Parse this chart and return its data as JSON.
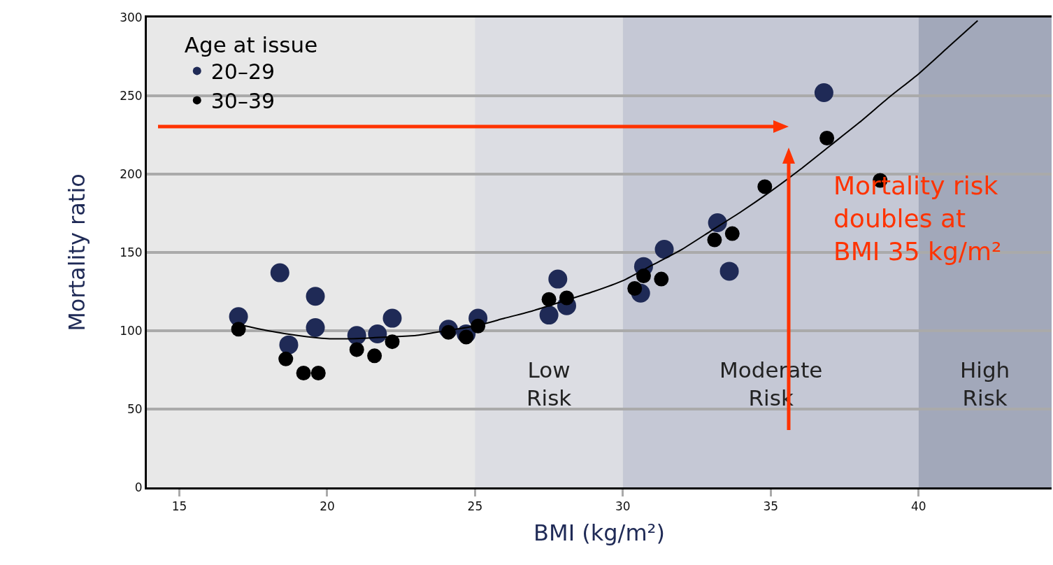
{
  "chart_data": {
    "type": "scatter",
    "xlabel": "BMI (kg/m²)",
    "ylabel": "Mortality ratio",
    "legend_title": "Age at issue",
    "xlim": [
      13.9,
      44.5
    ],
    "xticks": [
      15,
      20,
      25,
      30,
      35,
      40
    ],
    "ylim": [
      0,
      300
    ],
    "yticks": [
      0,
      50,
      100,
      150,
      200,
      250,
      300
    ],
    "grid": "y",
    "legend": "top left",
    "marker": "circle",
    "series": [
      {
        "name": "20–29",
        "color": "#1f2a56",
        "x": [
          17.0,
          18.4,
          18.7,
          19.6,
          19.6,
          21.0,
          21.7,
          22.2,
          24.1,
          24.7,
          25.1,
          27.5,
          27.8,
          28.1,
          30.6,
          30.7,
          31.4,
          33.2,
          33.6,
          36.8
        ],
        "values": [
          109,
          137,
          91,
          102,
          122,
          97,
          98,
          108,
          101,
          98,
          108,
          110,
          133,
          116,
          124,
          141,
          152,
          169,
          138,
          252
        ]
      },
      {
        "name": "30–39",
        "color": "#000000",
        "x": [
          17.0,
          18.6,
          19.2,
          19.7,
          21.0,
          21.6,
          22.2,
          24.1,
          24.7,
          25.1,
          27.5,
          28.1,
          30.4,
          30.7,
          31.3,
          33.1,
          33.7,
          34.8,
          36.9,
          38.7
        ],
        "values": [
          101,
          82,
          73,
          73,
          88,
          84,
          93,
          99,
          96,
          103,
          120,
          121,
          127,
          135,
          133,
          158,
          162,
          192,
          223,
          196
        ]
      },
      {
        "type": "line",
        "color": "#000000",
        "marker": "none",
        "x": [
          17,
          18,
          19,
          20,
          21,
          22,
          23,
          24,
          25,
          26,
          27,
          28,
          29,
          30,
          31,
          32,
          33,
          34,
          35,
          36,
          37,
          38,
          39,
          40,
          41,
          42
        ],
        "values": [
          104,
          100,
          97,
          95,
          95,
          96,
          97,
          100,
          103,
          108,
          113,
          119,
          125,
          132,
          142,
          152,
          164,
          176,
          189,
          203,
          218,
          233,
          249,
          264,
          281,
          298
        ]
      }
    ],
    "bands": [
      {
        "axis": "x",
        "from": 25,
        "to": 30,
        "label": "Low\nRisk",
        "color": "#dcdde3"
      },
      {
        "axis": "x",
        "from": 30,
        "to": 40,
        "label": "Moderate\nRisk",
        "color": "#c5c8d5"
      },
      {
        "axis": "x",
        "from": 40,
        "to": 44.5,
        "label": "High\nRisk",
        "color": "#a2a8ba"
      }
    ],
    "annotations": [
      "Mortality risk\ndoubles at\nBMI 35 kg/m²"
    ]
  }
}
